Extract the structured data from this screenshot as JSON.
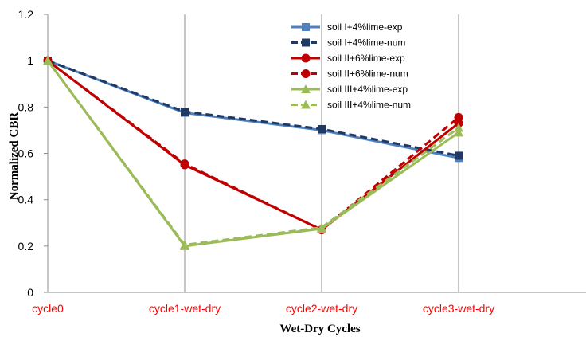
{
  "chart_data": {
    "type": "line",
    "title": "",
    "xlabel": "Wet-Dry Cycles",
    "ylabel": "Normalized CBR",
    "categories": [
      "cycle0",
      "cycle1-wet-dry",
      "cycle2-wet-dry",
      "cycle3-wet-dry"
    ],
    "category_label_color": "#ff0000",
    "ylim": [
      0,
      1.2
    ],
    "yticks": [
      "0",
      "0.2",
      "0.4",
      "0.6",
      "0.8",
      "1",
      "1.2"
    ],
    "grid": "vertical",
    "legend_position": "top-right",
    "series": [
      {
        "name": "soil I+4%lime-exp",
        "values": [
          1,
          0.775,
          0.7,
          0.58
        ],
        "color": "#4f81bd",
        "dash": "solid",
        "marker": "square"
      },
      {
        "name": "soil I+4%lime-num",
        "values": [
          1,
          0.78,
          0.705,
          0.59
        ],
        "color": "#1f3864",
        "dash": "dashed",
        "marker": "square"
      },
      {
        "name": "soil II+6%lime-exp",
        "values": [
          1,
          0.55,
          0.27,
          0.73
        ],
        "color": "#c00000",
        "dash": "solid",
        "marker": "circle"
      },
      {
        "name": "soil II+6%lime-num",
        "values": [
          1,
          0.555,
          0.27,
          0.755
        ],
        "color": "#c00000",
        "dash": "dashed",
        "marker": "circle"
      },
      {
        "name": "soil III+4%lime-exp",
        "values": [
          1,
          0.2,
          0.275,
          0.69
        ],
        "color": "#9bbb59",
        "dash": "solid",
        "marker": "triangle"
      },
      {
        "name": "soil III+4%lime-num",
        "values": [
          1,
          0.205,
          0.28,
          0.71
        ],
        "color": "#9bbb59",
        "dash": "dashed",
        "marker": "triangle"
      }
    ]
  }
}
